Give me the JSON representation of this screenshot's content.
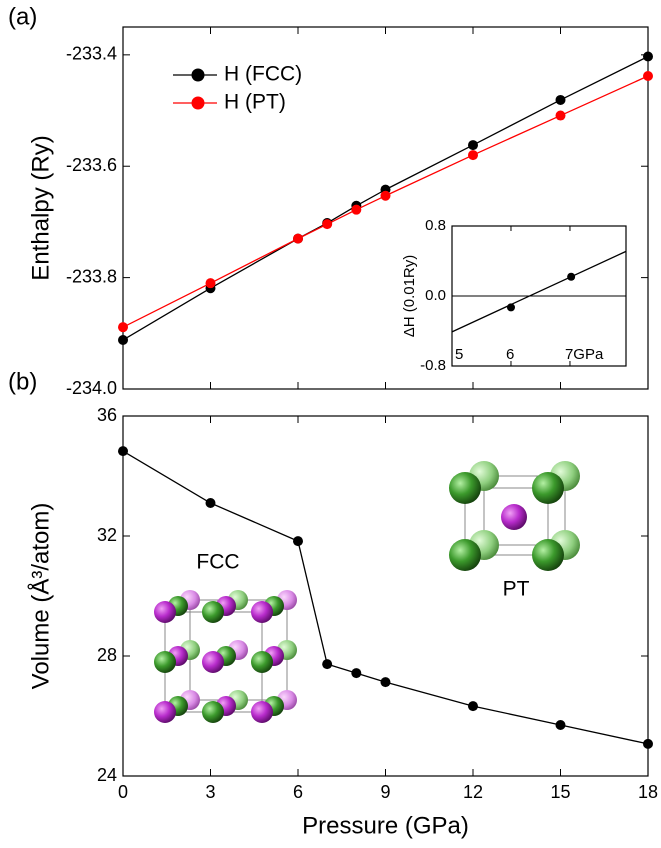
{
  "chart_data": [
    {
      "type": "line",
      "panel_label": "(a)",
      "ylabel": "Enthalpy (Ry)",
      "x": [
        0,
        3,
        6,
        7,
        8,
        9,
        12,
        15,
        18
      ],
      "xlim": [
        0,
        18
      ],
      "xticks": [
        0,
        3,
        6,
        9,
        12,
        15,
        18
      ],
      "ylim": [
        -234.0,
        -233.35
      ],
      "yticks": [
        {
          "value": -234.0,
          "label": "-234.0"
        },
        -233.8,
        -233.6,
        -233.4
      ],
      "legend": "upper left",
      "series": [
        {
          "name": "H (FCC)",
          "color": "#000000",
          "values": [
            -233.912,
            -233.819,
            -233.73,
            -233.702,
            -233.671,
            -233.642,
            -233.562,
            -233.481,
            -233.403
          ]
        },
        {
          "name": "H (PT)",
          "color": "#ff0000",
          "values": [
            -233.889,
            -233.81,
            -233.73,
            -233.704,
            -233.678,
            -233.653,
            -233.58,
            -233.509,
            -233.438
          ]
        }
      ]
    },
    {
      "type": "line",
      "ylabel": "ΔH (0.01Ry)",
      "xlim": [
        5,
        7.95
      ],
      "xticks": [
        5,
        6,
        {
          "value": 7,
          "label": "7GPa"
        }
      ],
      "ylim": [
        -0.8,
        0.8
      ],
      "yticks": [
        -0.8,
        {
          "value": 0,
          "label": "0.0"
        },
        0.8
      ],
      "hline": 0,
      "series": [
        {
          "color": "#000000",
          "x": [
            6,
            7.02
          ],
          "values": [
            -0.13,
            0.22
          ],
          "markers": true,
          "line": false
        },
        {
          "color": "#000000",
          "x": [
            5,
            7.95
          ],
          "values": [
            -0.41,
            0.51
          ],
          "markers": false,
          "line": true
        }
      ]
    },
    {
      "type": "line",
      "panel_label": "(b)",
      "xlabel": "Pressure (GPa)",
      "ylabel": "Volume (Å³/atom)",
      "x": [
        0,
        3,
        6,
        7,
        8,
        9,
        12,
        15,
        18
      ],
      "xlim": [
        0,
        18
      ],
      "xticks": [
        0,
        3,
        6,
        9,
        12,
        15,
        18
      ],
      "ylim": [
        24,
        36
      ],
      "yticks": [
        24,
        28,
        32,
        36
      ],
      "series": [
        {
          "color": "#000000",
          "values": [
            34.83,
            33.1,
            31.83,
            27.73,
            27.43,
            27.13,
            26.33,
            25.7,
            25.07
          ]
        }
      ],
      "annotations": [
        "FCC",
        "PT"
      ]
    }
  ]
}
